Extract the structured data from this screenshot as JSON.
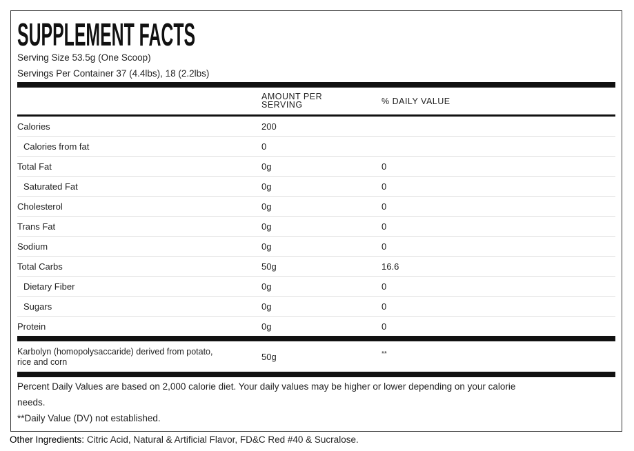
{
  "title": "SUPPLEMENT FACTS",
  "serving_size": "Serving Size 53.5g (One Scoop)",
  "servings_per_container": "Servings Per Container 37 (4.4lbs), 18 (2.2lbs)",
  "headers": {
    "amount_line1": "AMOUNT PER",
    "amount_line2": "SERVING",
    "daily_value": "% DAILY VALUE"
  },
  "rows": [
    {
      "name": "Calories",
      "amount": "200",
      "dv": "",
      "indent": false
    },
    {
      "name": "Calories from fat",
      "amount": "0",
      "dv": "",
      "indent": true
    },
    {
      "name": "Total Fat",
      "amount": "0g",
      "dv": "0",
      "indent": false
    },
    {
      "name": "Saturated Fat",
      "amount": "0g",
      "dv": "0",
      "indent": true
    },
    {
      "name": "Cholesterol",
      "amount": "0g",
      "dv": "0",
      "indent": false
    },
    {
      "name": "Trans Fat",
      "amount": "0g",
      "dv": "0",
      "indent": false
    },
    {
      "name": "Sodium",
      "amount": "0g",
      "dv": "0",
      "indent": false
    },
    {
      "name": "Total Carbs",
      "amount": "50g",
      "dv": "16.6",
      "indent": false
    },
    {
      "name": "Dietary Fiber",
      "amount": "0g",
      "dv": "0",
      "indent": true
    },
    {
      "name": "Sugars",
      "amount": "0g",
      "dv": "0",
      "indent": true
    },
    {
      "name": "Protein",
      "amount": "0g",
      "dv": "0",
      "indent": false
    }
  ],
  "karbolyn": {
    "name_line1": "Karbolyn (homopolysaccaride) derived from potato,",
    "name_line2": "rice and corn",
    "amount": "50g",
    "dv": "**"
  },
  "footnotes": {
    "line1": "Percent Daily Values are based on 2,000 calorie diet. Your daily values may be higher or lower depending on your calorie",
    "line2": "needs.",
    "line3": "**Daily Value (DV) not established."
  },
  "other_ingredients": {
    "label": "Other Ingredients:",
    "text": " Citric Acid, Natural & Artificial Flavor, FD&C Red #40 & Sucralose."
  }
}
